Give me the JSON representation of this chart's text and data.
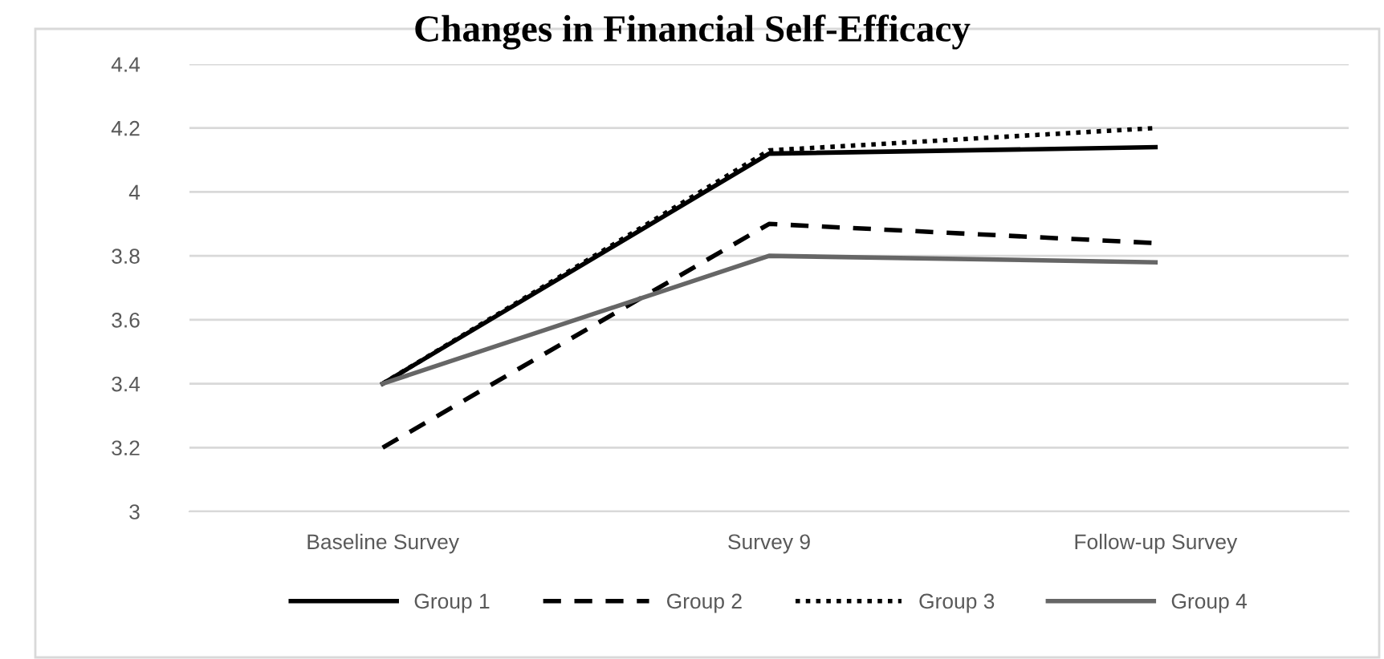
{
  "chart_data": {
    "type": "line",
    "title": "Changes in Financial Self-Efficacy",
    "categories": [
      "Baseline Survey",
      "Survey 9",
      "Follow-up Survey"
    ],
    "series": [
      {
        "name": "Group 1",
        "color": "#000000",
        "line_style": "solid",
        "values": [
          3.4,
          4.12,
          4.14
        ]
      },
      {
        "name": "Group 2",
        "color": "#000000",
        "line_style": "dashed",
        "values": [
          3.2,
          3.9,
          3.84
        ]
      },
      {
        "name": "Group 3",
        "color": "#000000",
        "line_style": "dotted",
        "values": [
          3.4,
          4.13,
          4.2
        ]
      },
      {
        "name": "Group 4",
        "color": "#666666",
        "line_style": "solid",
        "values": [
          3.4,
          3.8,
          3.78
        ]
      }
    ],
    "ylim": [
      3,
      4.4
    ],
    "yticks": [
      3,
      3.2,
      3.4,
      3.6,
      3.8,
      4,
      4.2,
      4.4
    ],
    "grid": "y",
    "legend": "bottom",
    "marker": "none"
  }
}
